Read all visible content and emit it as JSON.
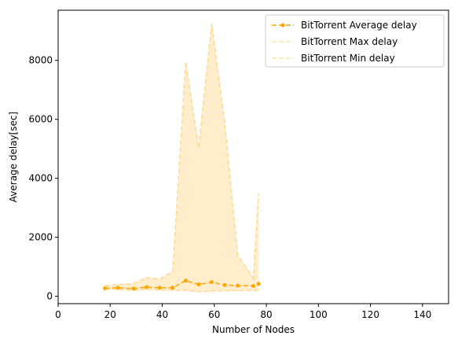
{
  "chart_data": {
    "type": "line",
    "xlabel": "Number of Nodes",
    "ylabel": "Average delay[sec]",
    "xlim": [
      0,
      150
    ],
    "ylim": [
      -250,
      9700
    ],
    "xticks": [
      0,
      20,
      40,
      60,
      80,
      100,
      120,
      140
    ],
    "yticks": [
      0,
      2000,
      4000,
      6000,
      8000
    ],
    "grid": false,
    "legend_placement": "top-right",
    "colors": {
      "avg": "#ffa500",
      "band": "#ffa500"
    },
    "series": [
      {
        "name": "BitTorrent Average delay",
        "style": "dashed-with-markers",
        "x": [
          18,
          23,
          29,
          34,
          39,
          44,
          49,
          54,
          59,
          64,
          69,
          75,
          77
        ],
        "y": [
          270,
          290,
          260,
          310,
          290,
          290,
          530,
          400,
          480,
          380,
          360,
          350,
          420
        ]
      },
      {
        "name": "BitTorrent Max delay",
        "style": "dashed",
        "x": [
          18,
          23,
          29,
          34,
          39,
          44,
          49,
          54,
          59,
          64,
          69,
          75,
          77
        ],
        "y": [
          360,
          400,
          430,
          640,
          580,
          850,
          7950,
          5050,
          9250,
          5900,
          1400,
          620,
          3500
        ]
      },
      {
        "name": "BitTorrent Min delay",
        "style": "dashed",
        "x": [
          18,
          23,
          29,
          34,
          39,
          44,
          49,
          54,
          59,
          64,
          69,
          75,
          77
        ],
        "y": [
          240,
          230,
          200,
          230,
          210,
          200,
          200,
          150,
          170,
          190,
          190,
          200,
          190
        ]
      }
    ]
  }
}
